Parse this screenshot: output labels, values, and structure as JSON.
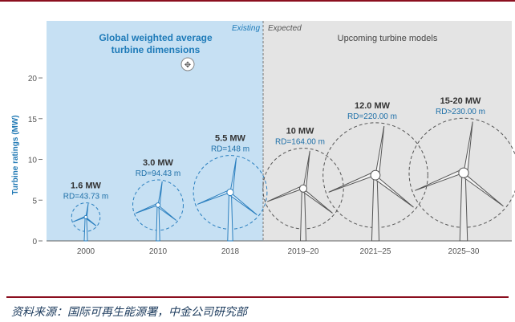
{
  "chart_data": {
    "type": "bar",
    "title": "Global weighted average turbine dimensions",
    "subtitle": "Upcoming turbine models",
    "ylabel": "Turbine ratings (MW)",
    "ylim": [
      0,
      27
    ],
    "yticks": [
      "0",
      "5",
      "10",
      "15",
      "20"
    ],
    "categories": [
      "2000",
      "2010",
      "2018",
      "2019–20",
      "2021–25",
      "2025–30"
    ],
    "segments": {
      "existing": "Existing",
      "expected": "Expected"
    },
    "turbines": [
      {
        "year": "2000",
        "rating_label": "1.6 MW",
        "rating": 1.6,
        "rd_label": "RD=43.73 m",
        "rd": 43.73,
        "segment": "existing"
      },
      {
        "year": "2010",
        "rating_label": "3.0 MW",
        "rating": 3.0,
        "rd_label": "RD=94.43 m",
        "rd": 94.43,
        "segment": "existing"
      },
      {
        "year": "2018",
        "rating_label": "5.5 MW",
        "rating": 5.5,
        "rd_label": "RD=148 m",
        "rd": 148,
        "segment": "existing"
      },
      {
        "year": "2019–20",
        "rating_label": "10 MW",
        "rating": 10,
        "rd_label": "RD=164.00 m",
        "rd": 164,
        "segment": "expected"
      },
      {
        "year": "2021–25",
        "rating_label": "12.0 MW",
        "rating": 12,
        "rd_label": "RD=220.00 m",
        "rd": 220,
        "segment": "expected"
      },
      {
        "year": "2025–30",
        "rating_label": "15-20 MW",
        "rating": 17.5,
        "rd_label": "RD>230.00 m",
        "rd": 230,
        "segment": "expected"
      }
    ]
  },
  "source_text": "资料来源：国际可再生能源署，中金公司研究部",
  "colors": {
    "existing_bg": "#c6e0f3",
    "expected_bg": "#e4e4e4",
    "accent": "#1d7ab8",
    "rule": "#8b0f1f"
  }
}
